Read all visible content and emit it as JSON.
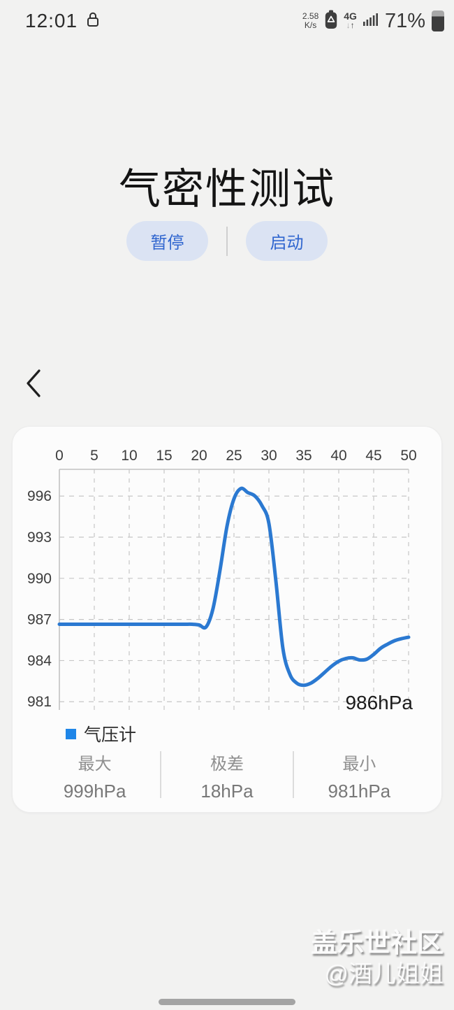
{
  "status_bar": {
    "time": "12:01",
    "network_speed_value": "2.58",
    "network_speed_unit": "K/s",
    "network_type": "4G",
    "battery_percent": "71%",
    "icons": [
      "lock-icon",
      "data-saver-icon",
      "network-arrows-icon",
      "signal-strength-icon",
      "battery-icon"
    ]
  },
  "title": "气密性测试",
  "controls": {
    "pause_label": "暂停",
    "start_label": "启动"
  },
  "chart_card": {
    "legend_name": "气压计",
    "stats": [
      {
        "label": "最大",
        "value": "999hPa"
      },
      {
        "label": "极差",
        "value": "18hPa"
      },
      {
        "label": "最小",
        "value": "981hPa"
      }
    ]
  },
  "chart_data": {
    "type": "line",
    "title": "",
    "xlabel": "",
    "ylabel": "",
    "x_axis_position": "top",
    "legend_position": "bottom-left",
    "grid": "dashed",
    "x_ticks": [
      0,
      5,
      10,
      15,
      20,
      25,
      30,
      35,
      40,
      45,
      50
    ],
    "y_ticks": [
      996,
      993,
      990,
      987,
      984,
      981
    ],
    "xlim": [
      0,
      50
    ],
    "ylim": [
      980.4,
      997.95
    ],
    "current_label": "986hPa",
    "line_color": "#2b79d1",
    "legend_color": "#1f86e8",
    "grid_color": "#c6c6c6",
    "axis_color": "#c2c2c2",
    "x": [
      0,
      1,
      2,
      3,
      4,
      5,
      6,
      7,
      8,
      9,
      10,
      11,
      12,
      13,
      14,
      15,
      16,
      17,
      18,
      19,
      20,
      21,
      22,
      23,
      24,
      25,
      26,
      27,
      28,
      29,
      30,
      31,
      32,
      33,
      34,
      35,
      36,
      37,
      38,
      39,
      40,
      41,
      42,
      43,
      44,
      45,
      46,
      47,
      48,
      49,
      50
    ],
    "series": [
      {
        "name": "气压计",
        "values": [
          986.65,
          986.65,
          986.65,
          986.65,
          986.65,
          986.65,
          986.65,
          986.65,
          986.65,
          986.65,
          986.65,
          986.65,
          986.65,
          986.65,
          986.65,
          986.65,
          986.65,
          986.65,
          986.65,
          986.65,
          986.6,
          986.45,
          987.8,
          990.6,
          993.8,
          995.8,
          996.55,
          996.25,
          996.0,
          995.3,
          994.0,
          989.8,
          984.9,
          983.0,
          982.35,
          982.2,
          982.35,
          982.7,
          983.15,
          983.6,
          983.95,
          984.15,
          984.2,
          984.05,
          984.1,
          984.45,
          984.9,
          985.2,
          985.45,
          985.6,
          985.7
        ]
      }
    ]
  },
  "watermark": {
    "line1": "盖乐世社区",
    "line2": "@酒儿姐姐"
  },
  "colors": {
    "page_background": "#f2f2f1",
    "card_background": "#fcfcfc",
    "accent_blue": "#3066cf",
    "pill_background": "#dbe3f3",
    "chart_line": "#2b79d1"
  }
}
